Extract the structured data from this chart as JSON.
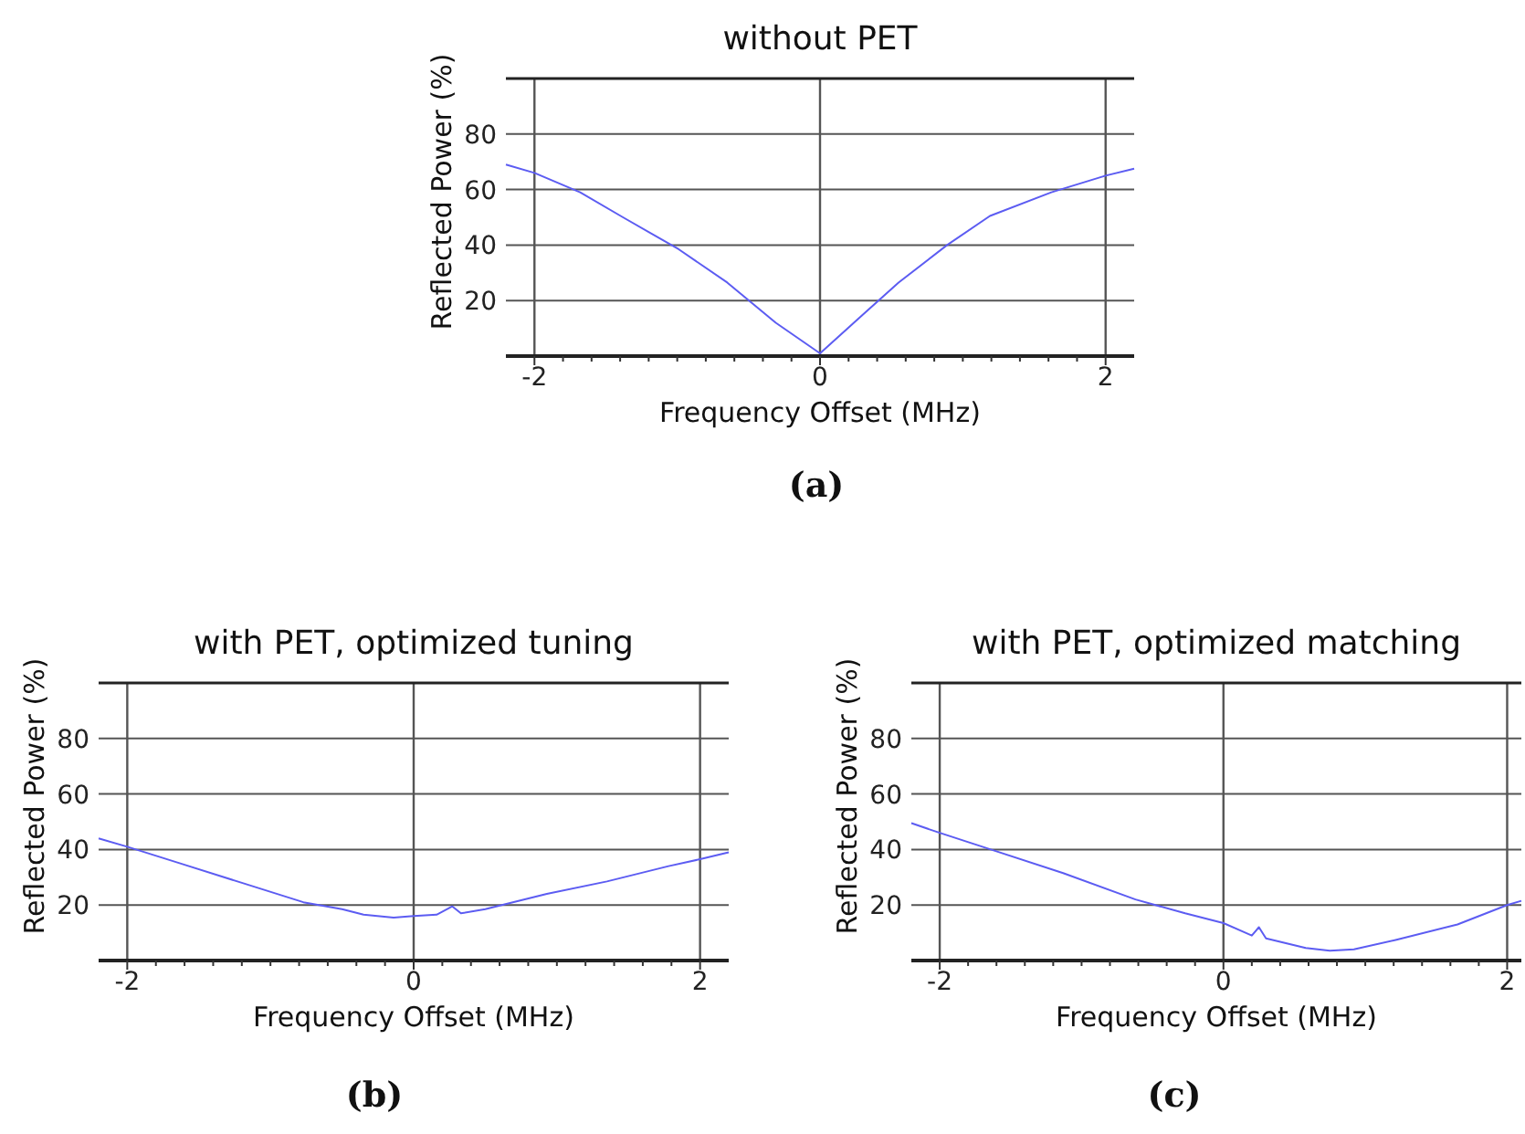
{
  "chart_data": [
    {
      "type": "line",
      "title": "without PET",
      "xlabel": "Frequency Offset (MHz)",
      "ylabel": "Reflected Power (%)",
      "annotations": [
        "(a)"
      ],
      "grid": true,
      "x": [
        -2.2,
        -2,
        -1.68,
        -1.38,
        -0.99,
        -0.65,
        -0.31,
        0,
        0.29,
        0.55,
        0.89,
        1.19,
        1.62,
        2,
        2.2
      ],
      "series": [
        {
          "color": "#5c5cf2",
          "values": [
            69,
            66,
            59,
            50,
            38.5,
            26.5,
            12,
            1,
            14.5,
            26.5,
            40,
            50.5,
            59,
            65,
            67.5
          ]
        }
      ],
      "xlim": [
        -2.2,
        2.2
      ],
      "xticks": [
        {
          "value": -2,
          "label": "-2"
        },
        {
          "value": -1.8,
          "label": null
        },
        {
          "value": -1.6,
          "label": null
        },
        {
          "value": -1.4,
          "label": null
        },
        {
          "value": -1.2,
          "label": null
        },
        {
          "value": -1,
          "label": null
        },
        {
          "value": -0.8,
          "label": null
        },
        {
          "value": -0.6,
          "label": null
        },
        {
          "value": -0.4,
          "label": null
        },
        {
          "value": -0.2,
          "label": null
        },
        {
          "value": 0,
          "label": "0"
        },
        {
          "value": 0.2,
          "label": null
        },
        {
          "value": 0.4,
          "label": null
        },
        {
          "value": 0.6,
          "label": null
        },
        {
          "value": 0.8,
          "label": null
        },
        {
          "value": 1,
          "label": null
        },
        {
          "value": 1.2,
          "label": null
        },
        {
          "value": 1.4,
          "label": null
        },
        {
          "value": 1.6,
          "label": null
        },
        {
          "value": 1.8,
          "label": null
        },
        {
          "value": 2,
          "label": "2"
        }
      ],
      "ylim": [
        0,
        100
      ],
      "yticks": [
        20,
        40,
        60,
        80
      ]
    },
    {
      "type": "line",
      "title": "with PET, optimized tuning",
      "xlabel": "Frequency Offset (MHz)",
      "ylabel": "Reflected Power (%)",
      "annotations": [
        "(b)"
      ],
      "grid": true,
      "x": [
        -2.2,
        -2,
        -1.63,
        -1.2,
        -0.77,
        -0.5,
        -0.35,
        -0.14,
        0,
        0.16,
        0.27,
        0.33,
        0.5,
        0.93,
        1.35,
        1.78,
        2,
        2.2
      ],
      "series": [
        {
          "color": "#5c5cf2",
          "values": [
            44,
            41,
            35,
            28,
            21,
            18.5,
            16.5,
            15.5,
            16,
            16.5,
            19.5,
            17,
            18.5,
            24,
            28.5,
            34,
            36.5,
            39
          ]
        }
      ],
      "xlim": [
        -2.2,
        2.2
      ],
      "xticks": [
        {
          "value": -2,
          "label": "-2"
        },
        {
          "value": -1.8,
          "label": null
        },
        {
          "value": -1.6,
          "label": null
        },
        {
          "value": -1.4,
          "label": null
        },
        {
          "value": -1.2,
          "label": null
        },
        {
          "value": -1,
          "label": null
        },
        {
          "value": -0.8,
          "label": null
        },
        {
          "value": -0.6,
          "label": null
        },
        {
          "value": -0.4,
          "label": null
        },
        {
          "value": -0.2,
          "label": null
        },
        {
          "value": 0,
          "label": "0"
        },
        {
          "value": 0.2,
          "label": null
        },
        {
          "value": 0.4,
          "label": null
        },
        {
          "value": 0.6,
          "label": null
        },
        {
          "value": 0.8,
          "label": null
        },
        {
          "value": 1,
          "label": null
        },
        {
          "value": 1.2,
          "label": null
        },
        {
          "value": 1.4,
          "label": null
        },
        {
          "value": 1.6,
          "label": null
        },
        {
          "value": 1.8,
          "label": null
        },
        {
          "value": 2,
          "label": "2"
        }
      ],
      "ylim": [
        0,
        100
      ],
      "yticks": [
        20,
        40,
        60,
        80
      ]
    },
    {
      "type": "line",
      "title": "with PET, optimized matching",
      "xlabel": "Frequency Offset (MHz)",
      "ylabel": "Reflected Power (%)",
      "annotations": [
        "(c)"
      ],
      "grid": true,
      "x": [
        -2.2,
        -2,
        -1.64,
        -1.13,
        -0.62,
        -0.27,
        0,
        0.2,
        0.25,
        0.3,
        0.58,
        0.75,
        0.92,
        1.22,
        1.65,
        2,
        2.1
      ],
      "series": [
        {
          "color": "#5c5cf2",
          "values": [
            49.5,
            46,
            40,
            31.5,
            22,
            17,
            13.5,
            9,
            12,
            8,
            4.5,
            3.5,
            4,
            7.5,
            13,
            20,
            21.5
          ]
        }
      ],
      "xlim": [
        -2.2,
        2.1
      ],
      "xticks": [
        {
          "value": -2,
          "label": "-2"
        },
        {
          "value": -1.8,
          "label": null
        },
        {
          "value": -1.6,
          "label": null
        },
        {
          "value": -1.4,
          "label": null
        },
        {
          "value": -1.2,
          "label": null
        },
        {
          "value": -1,
          "label": null
        },
        {
          "value": -0.8,
          "label": null
        },
        {
          "value": -0.6,
          "label": null
        },
        {
          "value": -0.4,
          "label": null
        },
        {
          "value": -0.2,
          "label": null
        },
        {
          "value": 0,
          "label": "0"
        },
        {
          "value": 0.2,
          "label": null
        },
        {
          "value": 0.4,
          "label": null
        },
        {
          "value": 0.6,
          "label": null
        },
        {
          "value": 0.8,
          "label": null
        },
        {
          "value": 1,
          "label": null
        },
        {
          "value": 1.2,
          "label": null
        },
        {
          "value": 1.4,
          "label": null
        },
        {
          "value": 1.6,
          "label": null
        },
        {
          "value": 1.8,
          "label": null
        },
        {
          "value": 2,
          "label": "2"
        }
      ],
      "ylim": [
        0,
        100
      ],
      "yticks": [
        20,
        40,
        60,
        80
      ]
    }
  ]
}
